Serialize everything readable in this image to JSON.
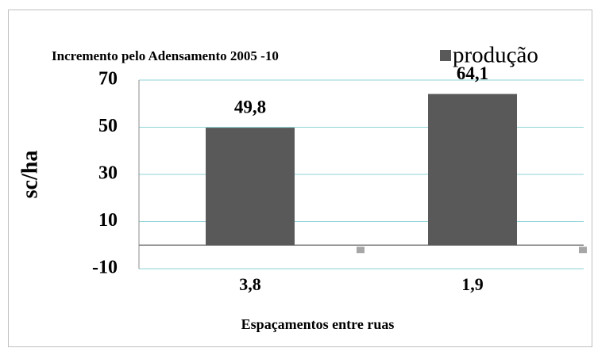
{
  "chart_data": {
    "type": "bar",
    "title": "Incremento pelo Adensamento 2005 -10",
    "y_label": "sc/ha",
    "x_label": "Espaçamentos entre ruas",
    "categories": [
      "3,8",
      "1,9"
    ],
    "series": [
      {
        "name": "produção",
        "color": "#595959",
        "values": [
          49.8,
          64.1
        ],
        "value_labels": [
          "49,8",
          "64,1"
        ]
      }
    ],
    "ylim": [
      -10,
      70
    ],
    "yticks": [
      -10,
      10,
      30,
      50,
      70
    ],
    "grid": true,
    "legend": "top-right"
  }
}
